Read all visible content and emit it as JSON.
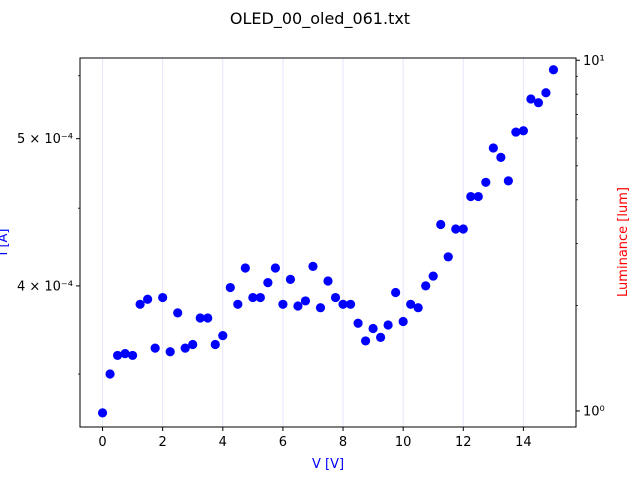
{
  "chart_data": {
    "type": "scatter",
    "title": "OLED_00_oled_061.txt",
    "xlabel": "V [V]",
    "ylabel_left": "I [A]",
    "ylabel_right": "Luminance [lum]",
    "xlabel_color": "#0000ff",
    "ylabel_left_color": "#0000ff",
    "ylabel_right_color": "#ff0000",
    "marker_color": "#0000ff",
    "gridline_color": "#e6e6ff",
    "x_ticks": [
      0,
      2,
      4,
      6,
      8,
      10,
      12,
      14
    ],
    "x_tick_labels": [
      "0",
      "2",
      "4",
      "6",
      "8",
      "10",
      "12",
      "14"
    ],
    "xlim": [
      -0.75,
      15.75
    ],
    "y_left_scale": "log",
    "ylim_left": [
      0.000323,
      0.000565
    ],
    "y_left_major_ticks": [
      0.0004,
      0.0005
    ],
    "y_left_major_tick_labels": [
      "4 × 10⁻⁴",
      "5 × 10⁻⁴"
    ],
    "y_left_minor_ticks": [
      0.00035,
      0.00045,
      0.00055
    ],
    "y_right_scale": "log",
    "ylim_right": [
      0.9,
      10.15
    ],
    "y_right_major_ticks": [
      1,
      10
    ],
    "y_right_major_tick_labels": [
      "10⁰",
      "10¹"
    ],
    "y_right_minor_ticks": [
      2,
      3,
      4,
      5,
      6,
      7,
      8,
      9
    ],
    "grid_x": true,
    "grid_y": false,
    "series": [
      {
        "axis": "left",
        "x": [
          0,
          0.25,
          0.5,
          0.75,
          1,
          1.25,
          1.5,
          1.75,
          2,
          2.25,
          2.5,
          2.75,
          3,
          3.25,
          3.5,
          3.75,
          4,
          4.25,
          4.5,
          4.75,
          5,
          5.25,
          5.5,
          5.75,
          6,
          6.25,
          6.5,
          6.75,
          7,
          7.25,
          7.5,
          7.75,
          8,
          8.25,
          8.5,
          8.75,
          9,
          9.25,
          9.5,
          9.75,
          10,
          10.25,
          10.5,
          10.75,
          11,
          11.25,
          11.5,
          11.75,
          12,
          12.25,
          12.5,
          12.75,
          13,
          13.25,
          13.5,
          13.75,
          14,
          14.25,
          14.5,
          14.75,
          15
        ],
        "y": [
          0.00033,
          0.00035,
          0.00036,
          0.000361,
          0.00036,
          0.000389,
          0.000392,
          0.000364,
          0.000393,
          0.000362,
          0.000384,
          0.000364,
          0.000366,
          0.000381,
          0.000381,
          0.000366,
          0.000371,
          0.000399,
          0.000389,
          0.000411,
          0.000393,
          0.000393,
          0.000402,
          0.000411,
          0.000389,
          0.000404,
          0.000388,
          0.000391,
          0.000412,
          0.000387,
          0.000403,
          0.000393,
          0.000389,
          0.000389,
          0.000378,
          0.000368,
          0.000375,
          0.00037,
          0.000377,
          0.000396,
          0.000379,
          0.000389,
          0.000387,
          0.0004,
          0.000406,
          0.000439,
          0.000418,
          0.000436,
          0.000436,
          0.000458,
          0.000458,
          0.000468,
          0.000493,
          0.000486,
          0.000469,
          0.000505,
          0.000506,
          0.000531,
          0.000528,
          0.000536,
          0.000555
        ]
      }
    ]
  }
}
